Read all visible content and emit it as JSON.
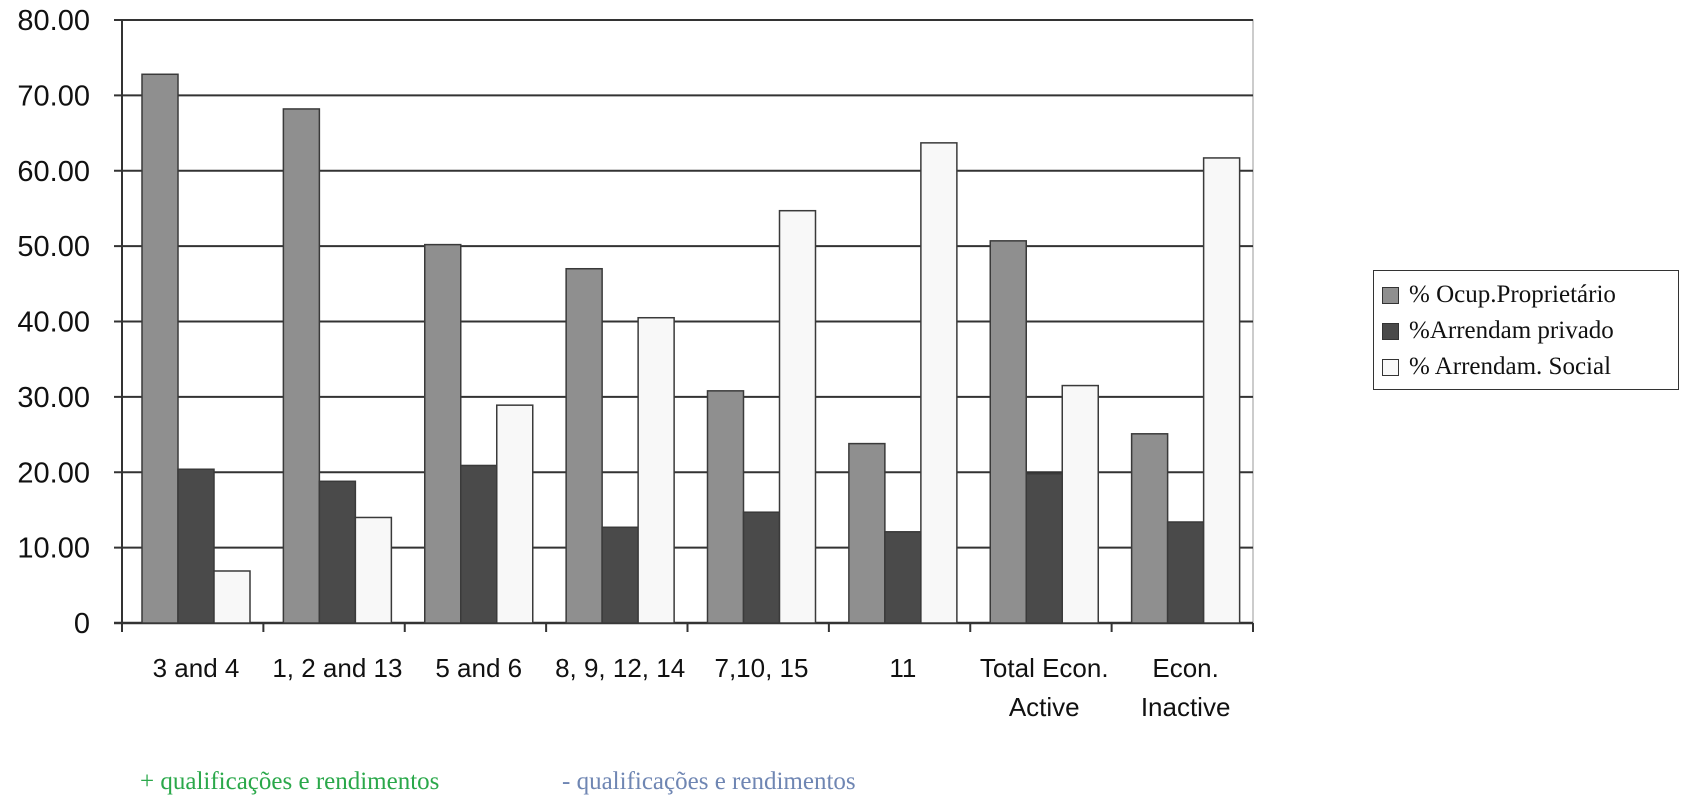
{
  "chart_data": {
    "type": "bar",
    "categories": [
      [
        "3 and 4"
      ],
      [
        "1, 2 and 13"
      ],
      [
        "5 and 6"
      ],
      [
        "8, 9, 12, 14"
      ],
      [
        "7,10, 15"
      ],
      [
        "11"
      ],
      [
        "Total Econ.",
        "Active"
      ],
      [
        "Econ.",
        "Inactive"
      ]
    ],
    "series": [
      {
        "name": "% Ocup.Proprietário",
        "color": "#8f8f8f",
        "values": [
          72.8,
          68.2,
          50.2,
          47.0,
          30.8,
          23.8,
          50.7,
          25.1
        ]
      },
      {
        "name": "%Arrendam privado",
        "color": "#4a4a4a",
        "values": [
          20.4,
          18.8,
          20.9,
          12.7,
          14.7,
          12.1,
          19.8,
          13.4
        ]
      },
      {
        "name": "% Arrendam. Social",
        "color": "#f8f8f8",
        "values": [
          6.9,
          14.0,
          28.9,
          40.5,
          54.7,
          63.7,
          31.5,
          61.7
        ]
      }
    ],
    "yticks": [
      "0",
      "10.00",
      "20.00",
      "30.00",
      "40.00",
      "50.00",
      "60.00",
      "70.00",
      "80.00"
    ],
    "ylim": [
      0,
      80
    ],
    "grid": true,
    "legend_position": "right",
    "annotations": [
      {
        "text": "+ qualificações e rendimentos",
        "color": "#2aa84a"
      },
      {
        "text": "- qualificações e rendimentos",
        "color": "#6f86b3"
      }
    ]
  }
}
